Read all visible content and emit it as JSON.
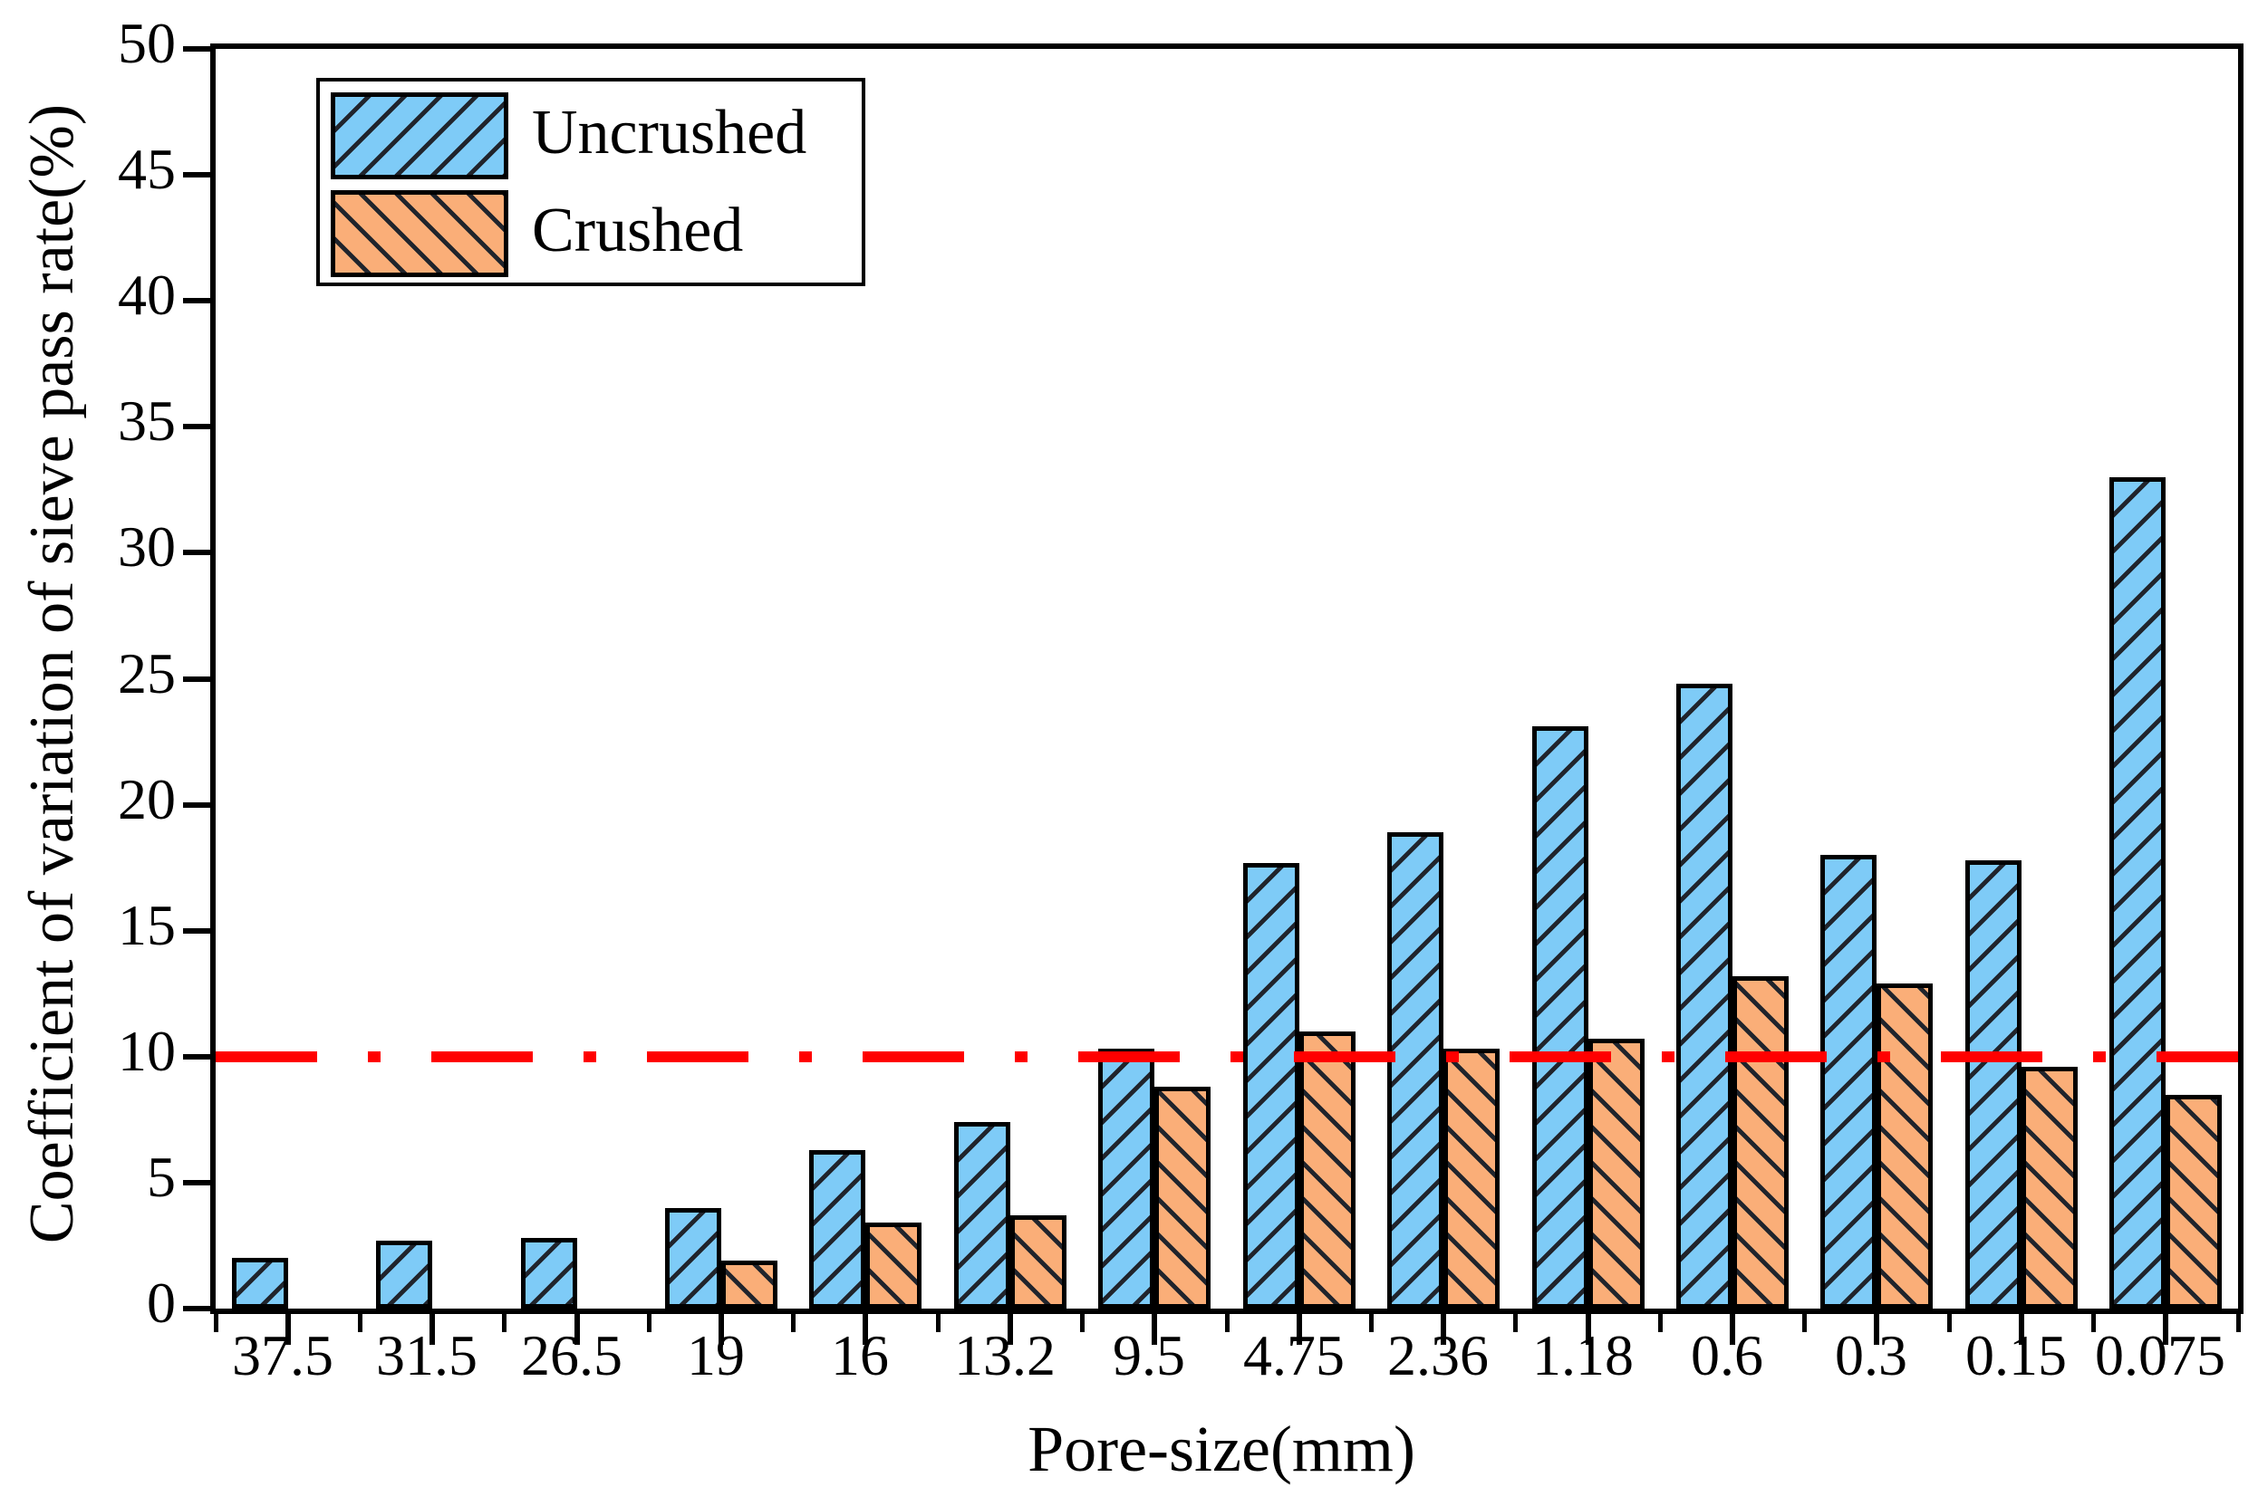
{
  "chart_data": {
    "type": "bar",
    "title": "",
    "xlabel": "Pore-size(mm)",
    "ylabel": "Coefficient of variation of sieve pass rate(%)",
    "categories": [
      "37.5",
      "31.5",
      "26.5",
      "19",
      "16",
      "13.2",
      "9.5",
      "4.75",
      "2.36",
      "1.18",
      "0.6",
      "0.3",
      "0.15",
      "0.075"
    ],
    "series": [
      {
        "name": "Uncrushed",
        "color": "#7ECBF7",
        "hatch": "/",
        "values": [
          2.0,
          2.7,
          2.8,
          4.0,
          6.3,
          7.4,
          10.3,
          17.7,
          18.9,
          23.1,
          24.8,
          18.0,
          17.8,
          33.0
        ]
      },
      {
        "name": "Crushed",
        "color": "#FAAE78",
        "hatch": "\\",
        "values": [
          0,
          0,
          0,
          1.9,
          3.4,
          3.7,
          8.8,
          11.0,
          10.3,
          10.7,
          13.2,
          12.9,
          9.6,
          8.5
        ]
      }
    ],
    "reference_line": {
      "value": 10,
      "color": "#FF0000",
      "style": "dash-dot"
    },
    "ylim": [
      0,
      50
    ],
    "yticks": [
      0,
      5,
      10,
      15,
      20,
      25,
      30,
      35,
      40,
      45,
      50
    ],
    "legend_position": "upper-left",
    "grid": false,
    "edge_color": "#000000",
    "hatch_line_color": "#20242C",
    "background_color": "#FFFFFF"
  }
}
